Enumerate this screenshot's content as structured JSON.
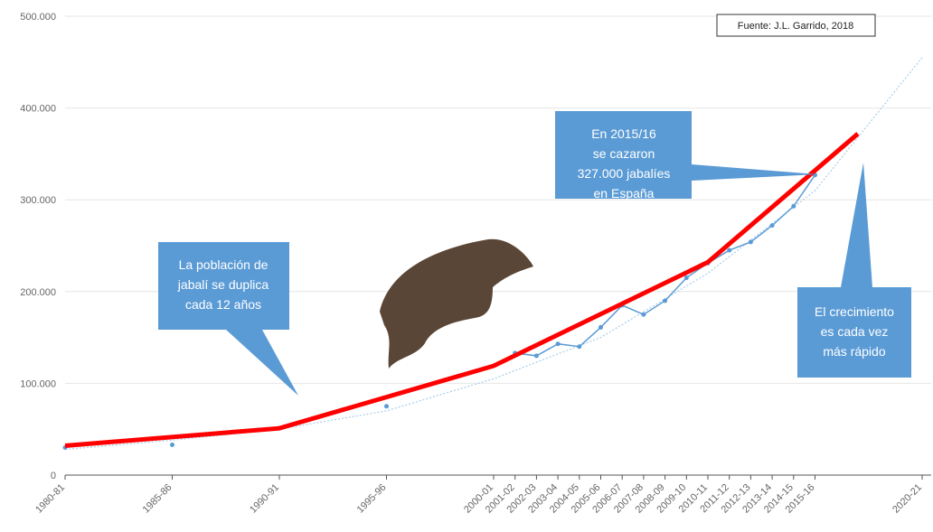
{
  "chart_data": {
    "type": "line",
    "source": "Fuente: J.L. Garrido, 2018",
    "annotations": [
      {
        "lines": [
          "La población de",
          "jabalí se duplica",
          "cada 12 años"
        ]
      },
      {
        "lines": [
          "En 2015/16",
          "se cazaron",
          "327.000 jabalíes",
          "en España"
        ]
      },
      {
        "lines": [
          "El crecimiento",
          "es cada vez",
          "más rápido"
        ]
      }
    ],
    "xlim": [
      1980,
      2020
    ],
    "xticks": [
      {
        "value": 1980,
        "label": "1980-81"
      },
      {
        "value": 1985,
        "label": "1985-86"
      },
      {
        "value": 1990,
        "label": "1990-91"
      },
      {
        "value": 1995,
        "label": "1995-96"
      },
      {
        "value": 2000,
        "label": "2000-01"
      },
      {
        "value": 2001,
        "label": "2001-02"
      },
      {
        "value": 2002,
        "label": "2002-03"
      },
      {
        "value": 2003,
        "label": "2003-04"
      },
      {
        "value": 2004,
        "label": "2004-05"
      },
      {
        "value": 2005,
        "label": "2005-06"
      },
      {
        "value": 2006,
        "label": "2006-07"
      },
      {
        "value": 2007,
        "label": "2007-08"
      },
      {
        "value": 2008,
        "label": "2008-09"
      },
      {
        "value": 2009,
        "label": "2009-10"
      },
      {
        "value": 2010,
        "label": "2010-11"
      },
      {
        "value": 2011,
        "label": "2011-12"
      },
      {
        "value": 2012,
        "label": "2012-13"
      },
      {
        "value": 2013,
        "label": "2013-14"
      },
      {
        "value": 2014,
        "label": "2014-15"
      },
      {
        "value": 2015,
        "label": "2015-16"
      },
      {
        "value": 2020,
        "label": "2020-21"
      }
    ],
    "ylim": [
      0,
      500000
    ],
    "yticks": [
      0,
      {
        "value": 100000,
        "label": "100.000"
      },
      {
        "value": 200000,
        "label": "200.000"
      },
      {
        "value": 300000,
        "label": "300.000"
      },
      {
        "value": 400000,
        "label": "400.000"
      },
      {
        "value": 500000,
        "label": "500.000"
      }
    ],
    "grid": true,
    "series": [
      {
        "color": "#a9cde8",
        "style": "dotted",
        "x": [
          1980,
          1985,
          1990,
          1995,
          2000,
          2005,
          2010,
          2015,
          2020
        ],
        "values": [
          28000,
          38000,
          50000,
          70000,
          105000,
          150000,
          220000,
          310000,
          455000
        ]
      },
      {
        "color": "#5b9bd5",
        "style": "markers",
        "x": [
          1980,
          1985,
          1990,
          1995,
          2001,
          2002,
          2003,
          2004,
          2005,
          2006,
          2007,
          2008,
          2009,
          2010,
          2011,
          2012,
          2013,
          2014,
          2015
        ],
        "values": [
          30000,
          33000,
          51000,
          75000,
          133000,
          130000,
          143000,
          140000,
          161000,
          185000,
          175000,
          190000,
          215000,
          231000,
          245000,
          254000,
          272000,
          293000,
          327000
        ]
      },
      {
        "color": "#ff0000",
        "style": "thick",
        "x": [
          1980,
          1990,
          2000,
          2010,
          2017
        ],
        "values": [
          32000,
          51000,
          119000,
          232000,
          372000
        ]
      }
    ]
  }
}
